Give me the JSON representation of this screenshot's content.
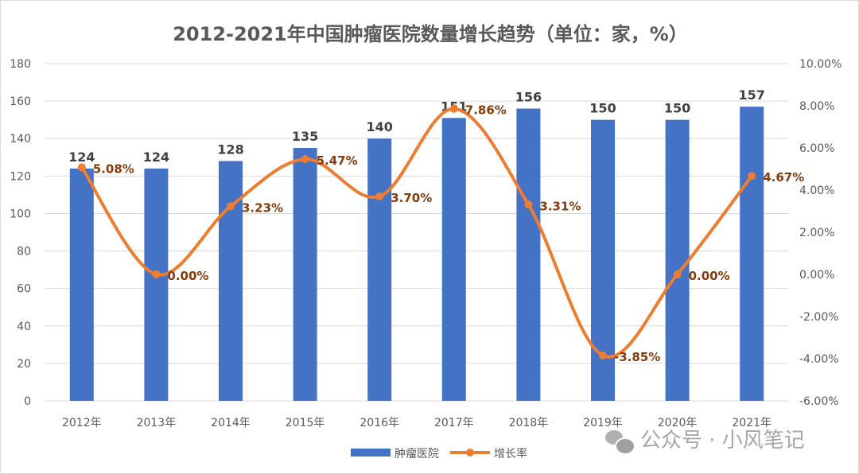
{
  "chart_data": {
    "type": "bar+line",
    "title": "2012-2021年中国肿瘤医院数量增长趋势（单位：家，%）",
    "categories": [
      "2012年",
      "2013年",
      "2014年",
      "2015年",
      "2016年",
      "2017年",
      "2018年",
      "2019年",
      "2020年",
      "2021年"
    ],
    "series": [
      {
        "name": "肿瘤医院",
        "type": "bar",
        "axis": "left",
        "color": "#4472C4",
        "values": [
          124,
          124,
          128,
          135,
          140,
          151,
          156,
          150,
          150,
          157
        ]
      },
      {
        "name": "增长率",
        "type": "line",
        "axis": "right",
        "color": "#ED7D31",
        "smooth": true,
        "values": [
          5.08,
          0.0,
          3.23,
          5.47,
          3.7,
          7.86,
          3.31,
          -3.85,
          0.0,
          4.67
        ]
      }
    ],
    "left_axis": {
      "range": [
        0,
        180
      ],
      "ticks": [
        "0",
        "20",
        "40",
        "60",
        "80",
        "100",
        "120",
        "140",
        "160",
        "180"
      ]
    },
    "right_axis": {
      "range": [
        -6,
        10
      ],
      "ticks": [
        "-6.00%",
        "-4.00%",
        "-2.00%",
        "0.00%",
        "2.00%",
        "4.00%",
        "6.00%",
        "8.00%",
        "10.00%"
      ]
    },
    "grid": true,
    "legend": "bottom",
    "label_color_line": "#843C0C",
    "label_color_bar": "#404040"
  },
  "watermark": "公众号 · 小风笔记"
}
